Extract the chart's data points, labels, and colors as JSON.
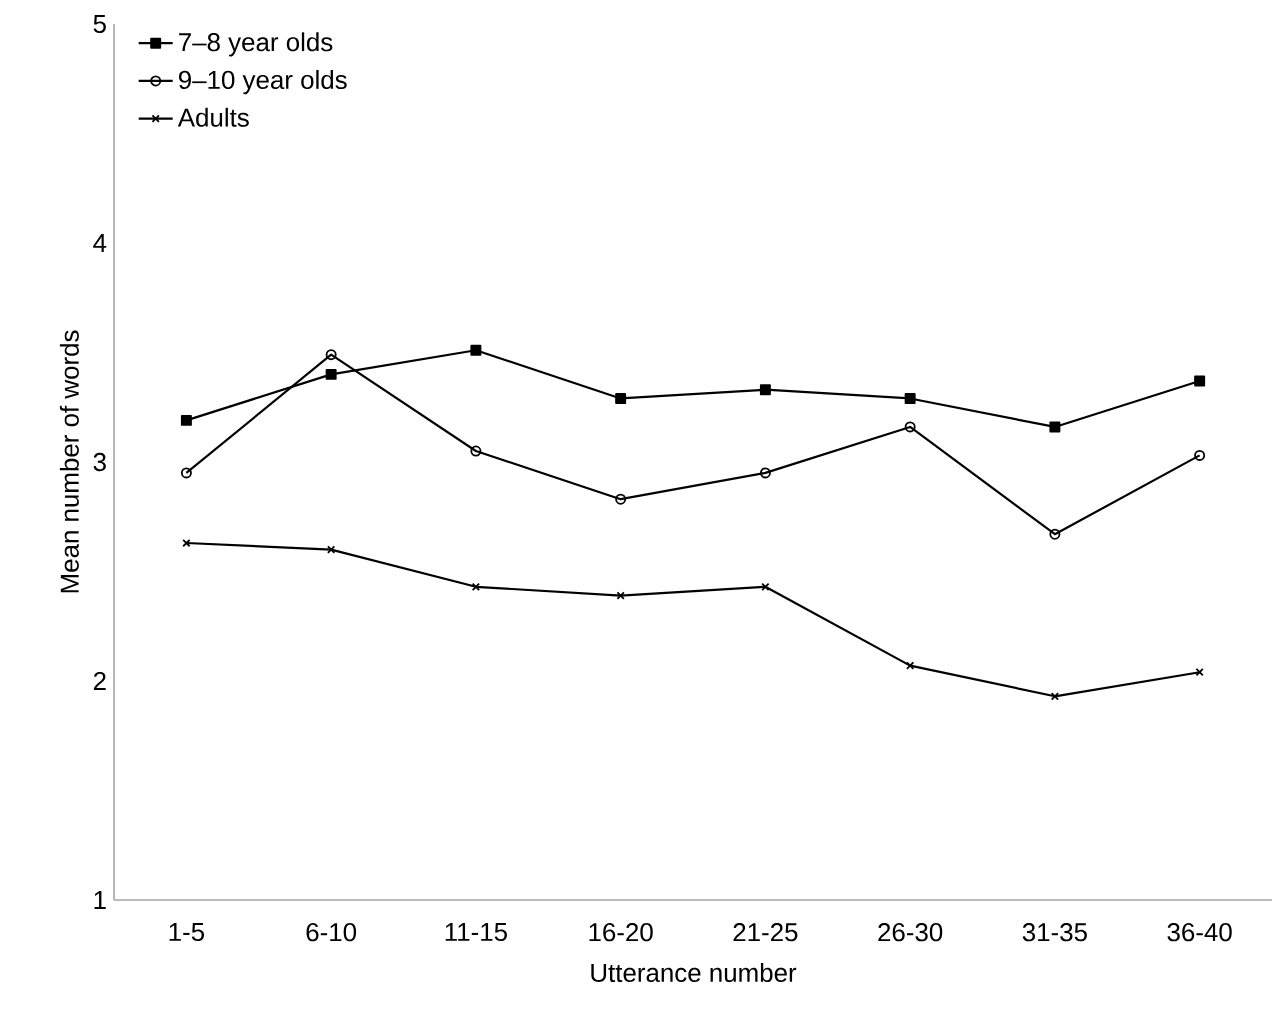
{
  "chart_data": {
    "type": "line",
    "xlabel": "Utterance number",
    "ylabel": "Mean number of words",
    "categories": [
      "1-5",
      "6-10",
      "11-15",
      "16-20",
      "21-25",
      "26-30",
      "31-35",
      "36-40"
    ],
    "ylim": [
      1,
      5
    ],
    "yticks": [
      1,
      2,
      3,
      4,
      5
    ],
    "grid": false,
    "legend": "top left",
    "series": [
      {
        "name": "7–8 year olds",
        "color": "#000000",
        "marker": "square",
        "values": [
          3.19,
          3.4,
          3.51,
          3.29,
          3.33,
          3.29,
          3.16,
          3.37
        ]
      },
      {
        "name": "9–10 year olds",
        "color": "#000000",
        "marker": "circle",
        "values": [
          2.95,
          3.49,
          3.05,
          2.83,
          2.95,
          3.16,
          2.67,
          3.03
        ]
      },
      {
        "name": "Adults",
        "color": "#000000",
        "marker": "cross",
        "values": [
          2.63,
          2.6,
          2.43,
          2.39,
          2.43,
          2.07,
          1.93,
          2.04
        ]
      }
    ]
  }
}
